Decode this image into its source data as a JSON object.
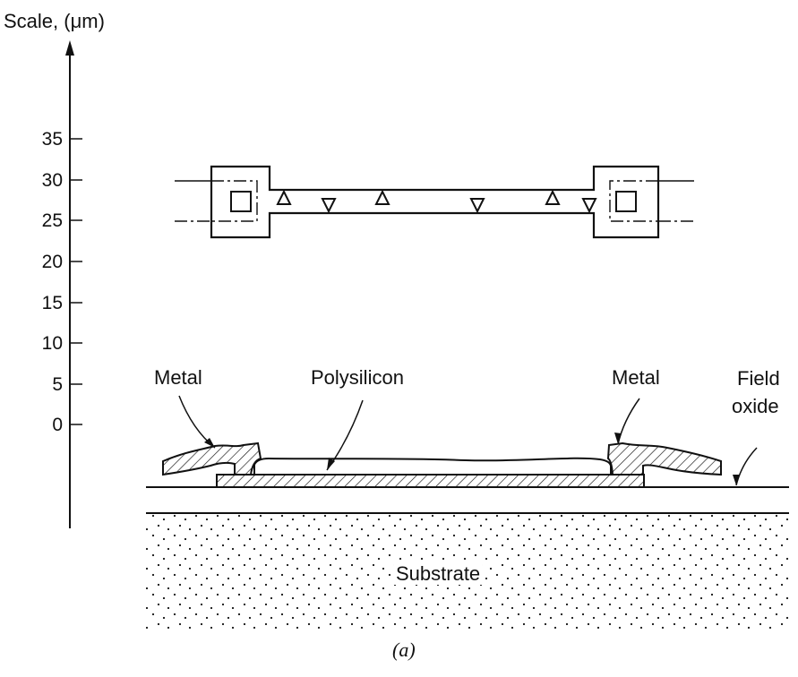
{
  "scale": {
    "title": "Scale, (μm)",
    "ticks": [
      "35",
      "30",
      "25",
      "20",
      "15",
      "10",
      "5",
      "0"
    ]
  },
  "labels": {
    "metal_left": "Metal",
    "polysilicon": "Polysilicon",
    "metal_right": "Metal",
    "field_oxide_line1": "Field",
    "field_oxide_line2": "oxide",
    "substrate": "Substrate"
  },
  "caption": "(a)"
}
